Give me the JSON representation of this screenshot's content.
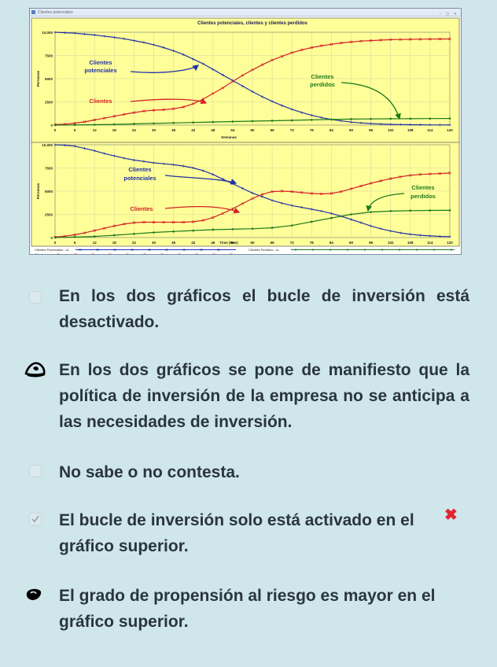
{
  "window": {
    "title": "Clientes potenciales",
    "buttons": "– ▢ ✕"
  },
  "chart_data": [
    {
      "type": "line",
      "title": "Clientes potenciales, clientes y clientes perdidos",
      "xlabel": "Semanas",
      "ylabel": "Personas",
      "xlim": [
        0,
        120
      ],
      "ylim": [
        0,
        10000
      ],
      "xticks": [
        "0",
        "6",
        "12",
        "18",
        "24",
        "30",
        "36",
        "42",
        "48",
        "54",
        "60",
        "66",
        "72",
        "78",
        "84",
        "90",
        "96",
        "102",
        "108",
        "114",
        "120"
      ],
      "yticks": [
        "0",
        "2500",
        "5000",
        "7500",
        "10,000"
      ],
      "grid": true,
      "background": "#ffff99",
      "annotations": [
        {
          "text": "Clientes potenciales",
          "color": "#1f2fa6"
        },
        {
          "text": "Clientes",
          "color": "#d42027"
        },
        {
          "text": "Clientes perdidos",
          "color": "#1a7a1a"
        }
      ],
      "series": [
        {
          "name": "Clientes potenciales",
          "color": "#1f2fa6",
          "x": [
            0,
            3,
            6,
            9,
            12,
            15,
            18,
            21,
            24,
            27,
            30,
            33,
            36,
            39,
            42,
            45,
            48,
            51,
            54,
            57,
            60,
            63,
            66,
            69,
            72,
            75,
            78,
            81,
            84,
            87,
            90,
            93,
            96,
            99,
            102,
            105,
            108,
            111,
            114,
            117,
            120
          ],
          "values": [
            10000,
            9950,
            9900,
            9800,
            9700,
            9580,
            9450,
            9300,
            9100,
            8900,
            8650,
            8350,
            8000,
            7600,
            7100,
            6600,
            6000,
            5400,
            4800,
            4200,
            3600,
            3050,
            2550,
            2100,
            1700,
            1350,
            1050,
            800,
            600,
            450,
            320,
            230,
            160,
            110,
            80,
            60,
            40,
            30,
            20,
            15,
            10
          ]
        },
        {
          "name": "Clientes",
          "color": "#d42027",
          "x": [
            0,
            3,
            6,
            9,
            12,
            15,
            18,
            21,
            24,
            27,
            30,
            33,
            36,
            39,
            42,
            45,
            48,
            51,
            54,
            57,
            60,
            63,
            66,
            69,
            72,
            75,
            78,
            81,
            84,
            87,
            90,
            93,
            96,
            99,
            102,
            105,
            108,
            111,
            114,
            117,
            120
          ],
          "values": [
            50,
            100,
            200,
            350,
            550,
            750,
            950,
            1150,
            1350,
            1500,
            1600,
            1650,
            1750,
            1950,
            2300,
            2800,
            3400,
            4000,
            4700,
            5350,
            5950,
            6500,
            7000,
            7400,
            7800,
            8100,
            8350,
            8550,
            8700,
            8850,
            8950,
            9050,
            9100,
            9150,
            9200,
            9220,
            9240,
            9250,
            9260,
            9270,
            9280
          ]
        },
        {
          "name": "Clientes perdidos",
          "color": "#1a7a1a",
          "x": [
            0,
            6,
            12,
            18,
            24,
            30,
            36,
            42,
            48,
            54,
            60,
            66,
            72,
            78,
            84,
            90,
            96,
            102,
            108,
            114,
            120
          ],
          "values": [
            0,
            10,
            40,
            80,
            130,
            180,
            230,
            280,
            330,
            380,
            420,
            470,
            510,
            560,
            600,
            640,
            660,
            680,
            690,
            700,
            710
          ]
        }
      ]
    },
    {
      "type": "line",
      "title": "",
      "xlabel": "Time (Mes)",
      "ylabel": "Personas",
      "xlim": [
        0,
        120
      ],
      "ylim": [
        0,
        10000
      ],
      "xticks": [
        "0",
        "6",
        "12",
        "18",
        "24",
        "30",
        "36",
        "42",
        "48",
        "54",
        "60",
        "66",
        "72",
        "78",
        "84",
        "90",
        "96",
        "102",
        "108",
        "114",
        "120"
      ],
      "yticks": [
        "0",
        "2500",
        "5000",
        "7500",
        "10,000"
      ],
      "grid": true,
      "background": "#ffff99",
      "annotations": [
        {
          "text": "Clientes potenciales",
          "color": "#1f2fa6"
        },
        {
          "text": "Clientes",
          "color": "#d42027"
        },
        {
          "text": "Clientes perdidos",
          "color": "#1a7a1a"
        }
      ],
      "legend": [
        {
          "label": "Clientes Potenciales : zz",
          "color": "#1f2fa6"
        },
        {
          "label": "Clientes : zz",
          "color": "#d42027"
        },
        {
          "label": "Clientes Perdidos : zz",
          "color": "#1a7a1a"
        }
      ],
      "series": [
        {
          "name": "Clientes potenciales",
          "color": "#1f2fa6",
          "x": [
            0,
            3,
            6,
            9,
            12,
            15,
            18,
            21,
            24,
            27,
            30,
            33,
            36,
            39,
            42,
            45,
            48,
            51,
            54,
            57,
            60,
            63,
            66,
            69,
            72,
            75,
            78,
            81,
            84,
            87,
            90,
            93,
            96,
            99,
            102,
            105,
            108,
            111,
            114,
            117,
            120
          ],
          "values": [
            10000,
            9950,
            9850,
            9600,
            9350,
            9050,
            8800,
            8550,
            8350,
            8200,
            8050,
            7950,
            7850,
            7700,
            7500,
            7200,
            6800,
            6300,
            5800,
            5300,
            4800,
            4400,
            4000,
            3700,
            3450,
            3250,
            3050,
            2850,
            2600,
            2300,
            1950,
            1600,
            1250,
            950,
            700,
            500,
            350,
            250,
            180,
            130,
            100
          ]
        },
        {
          "name": "Clientes",
          "color": "#d42027",
          "x": [
            0,
            3,
            6,
            9,
            12,
            15,
            18,
            21,
            24,
            27,
            30,
            33,
            36,
            39,
            42,
            45,
            48,
            51,
            54,
            57,
            60,
            63,
            66,
            69,
            72,
            75,
            78,
            81,
            84,
            87,
            90,
            93,
            96,
            99,
            102,
            105,
            108,
            111,
            114,
            117,
            120
          ],
          "values": [
            50,
            150,
            300,
            500,
            750,
            1000,
            1250,
            1450,
            1600,
            1650,
            1650,
            1650,
            1650,
            1650,
            1700,
            1850,
            2150,
            2600,
            3100,
            3650,
            4200,
            4650,
            4950,
            5000,
            4950,
            4850,
            4750,
            4700,
            4750,
            4950,
            5250,
            5550,
            5850,
            6100,
            6350,
            6550,
            6700,
            6800,
            6850,
            6900,
            6950
          ]
        },
        {
          "name": "Clientes perdidos",
          "color": "#1a7a1a",
          "x": [
            0,
            6,
            12,
            18,
            24,
            30,
            36,
            42,
            48,
            54,
            60,
            66,
            72,
            78,
            84,
            90,
            96,
            102,
            108,
            114,
            120
          ],
          "values": [
            0,
            50,
            120,
            250,
            400,
            550,
            650,
            750,
            850,
            900,
            950,
            1050,
            1300,
            1700,
            2100,
            2500,
            2750,
            2850,
            2900,
            2920,
            2930
          ]
        }
      ]
    }
  ],
  "options": [
    {
      "text": "En los dos gráficos el bucle de inversión está desactivado.",
      "state": "unchecked"
    },
    {
      "text": "En los dos gráficos se pone de manifiesto que la política de inversión de la empresa no se anticipa a las necesidades de inversión.",
      "state": "hand-marked"
    },
    {
      "text": "No sabe o no contesta.",
      "state": "unchecked"
    },
    {
      "text": "El bucle de inversión solo está activado en el gráfico superior.",
      "state": "checked-incorrect",
      "mark": "✖"
    },
    {
      "text": "El grado de propensión al riesgo es mayor en el gráfico superior.",
      "state": "hand-marked"
    }
  ]
}
